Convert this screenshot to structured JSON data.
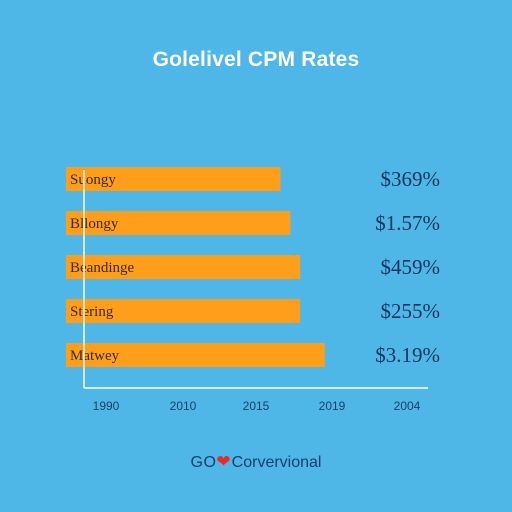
{
  "chart_data": {
    "type": "bar",
    "orientation": "horizontal",
    "title": "Golelivel CPM Rates",
    "categories": [
      "Suongy",
      "Bllongy",
      "Beandinge",
      "Stering",
      "Matwey"
    ],
    "values": [
      2010,
      2011,
      2012,
      2012,
      2014.5
    ],
    "value_labels": [
      "$369%",
      "$1.57%",
      "$459%",
      "$255%",
      "$3.19%"
    ],
    "x_ticks": [
      "1990",
      "2010",
      "2015",
      "2019",
      "2004"
    ],
    "xlim": [
      1990,
      2025
    ],
    "grid": false,
    "legend": "none"
  },
  "colors": {
    "background": "#4fb6e8",
    "bar": "#ff9e1b",
    "axis": "#ffffff",
    "value_text": "#1a3560",
    "heart": "#e52b2b"
  },
  "footer": {
    "brand": "GO",
    "heart_icon": "heart-icon",
    "text": "Corvervional"
  }
}
